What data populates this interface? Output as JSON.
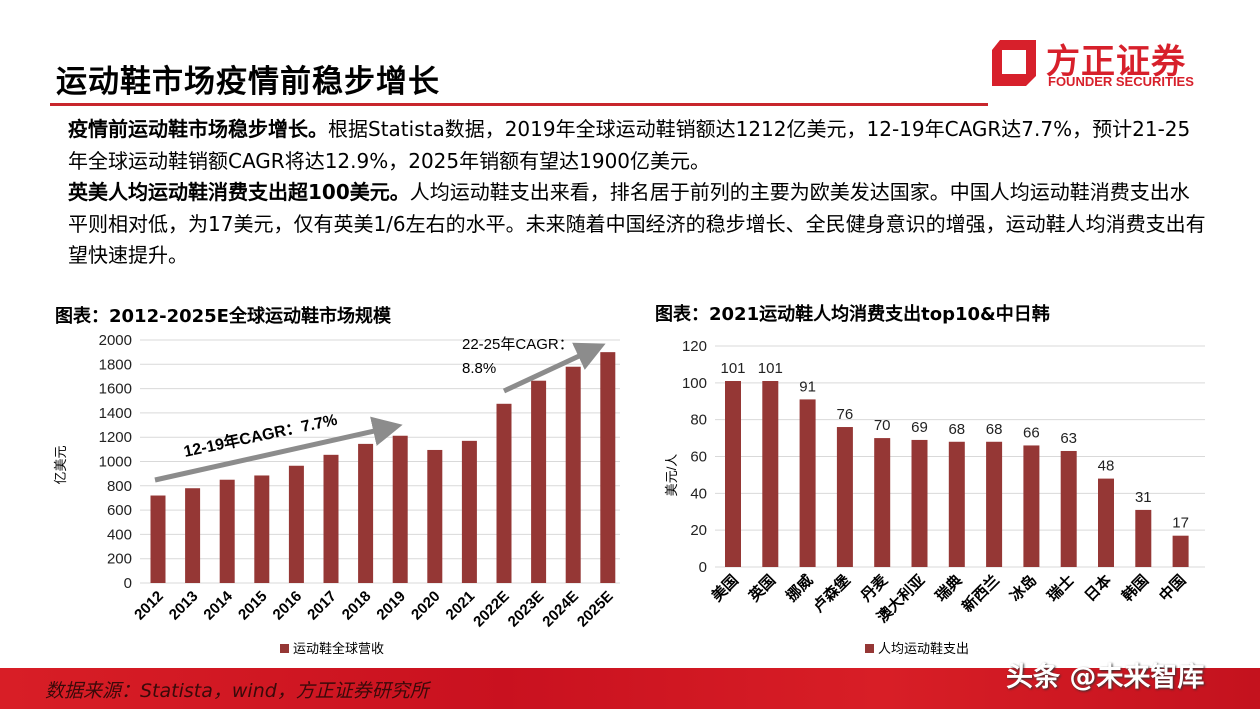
{
  "header": {
    "title": "运动鞋市场疫情前稳步增长"
  },
  "logo": {
    "cn": "方正证券",
    "en": "FOUNDER SECURITIES"
  },
  "body": {
    "p1_bold": "疫情前运动鞋市场稳步增长。",
    "p1_text": "根据Statista数据，2019年全球运动鞋销额达1212亿美元，12-19年CAGR达7.7%，预计21-25年全球运动鞋销额CAGR将达12.9%，2025年销额有望达1900亿美元。",
    "p2_bold": "英美人均运动鞋消费支出超100美元。",
    "p2_text": "人均运动鞋支出来看，排名居于前列的主要为欧美发达国家。中国人均运动鞋消费支出水平则相对低，为17美元，仅有英美1/6左右的水平。未来随着中国经济的稳步增长、全民健身意识的增强，运动鞋人均消费支出有望快速提升。"
  },
  "colors": {
    "accent": "#c8262c",
    "bar": "#953735",
    "grid": "#d9d9d9"
  },
  "chart_data": [
    {
      "type": "bar",
      "title": "图表：2012-2025E全球运动鞋市场规模",
      "categories": [
        "2012",
        "2013",
        "2014",
        "2015",
        "2016",
        "2017",
        "2018",
        "2019",
        "2020",
        "2021",
        "2022E",
        "2023E",
        "2024E",
        "2025E"
      ],
      "values": [
        720,
        780,
        850,
        885,
        965,
        1055,
        1145,
        1212,
        1095,
        1170,
        1475,
        1665,
        1780,
        1900
      ],
      "ylabel": "亿美元",
      "ylim": [
        0,
        2000
      ],
      "yticks": [
        0,
        200,
        400,
        600,
        800,
        1000,
        1200,
        1400,
        1600,
        1800,
        2000
      ],
      "legend": "运动鞋全球营收",
      "legend_position": "bottom",
      "annotations": [
        "12-19年CAGR：7.7%",
        "22-25年CAGR：",
        "8.8%"
      ]
    },
    {
      "type": "bar",
      "title": "图表：2021运动鞋人均消费支出top10&中日韩",
      "categories": [
        "美国",
        "英国",
        "挪威",
        "卢森堡",
        "丹麦",
        "澳大利亚",
        "瑞典",
        "新西兰",
        "冰岛",
        "瑞士",
        "日本",
        "韩国",
        "中国"
      ],
      "values": [
        101,
        101,
        91,
        76,
        70,
        69,
        68,
        68,
        66,
        63,
        48,
        31,
        17
      ],
      "ylabel": "美元/人",
      "ylim": [
        0,
        120
      ],
      "yticks": [
        0,
        20,
        40,
        60,
        80,
        100,
        120
      ],
      "legend": "人均运动鞋支出",
      "legend_position": "bottom",
      "data_labels": true
    }
  ],
  "footer": {
    "source": "数据来源：Statista，wind，方正证券研究所",
    "watermark": "头条 @未来智库"
  }
}
